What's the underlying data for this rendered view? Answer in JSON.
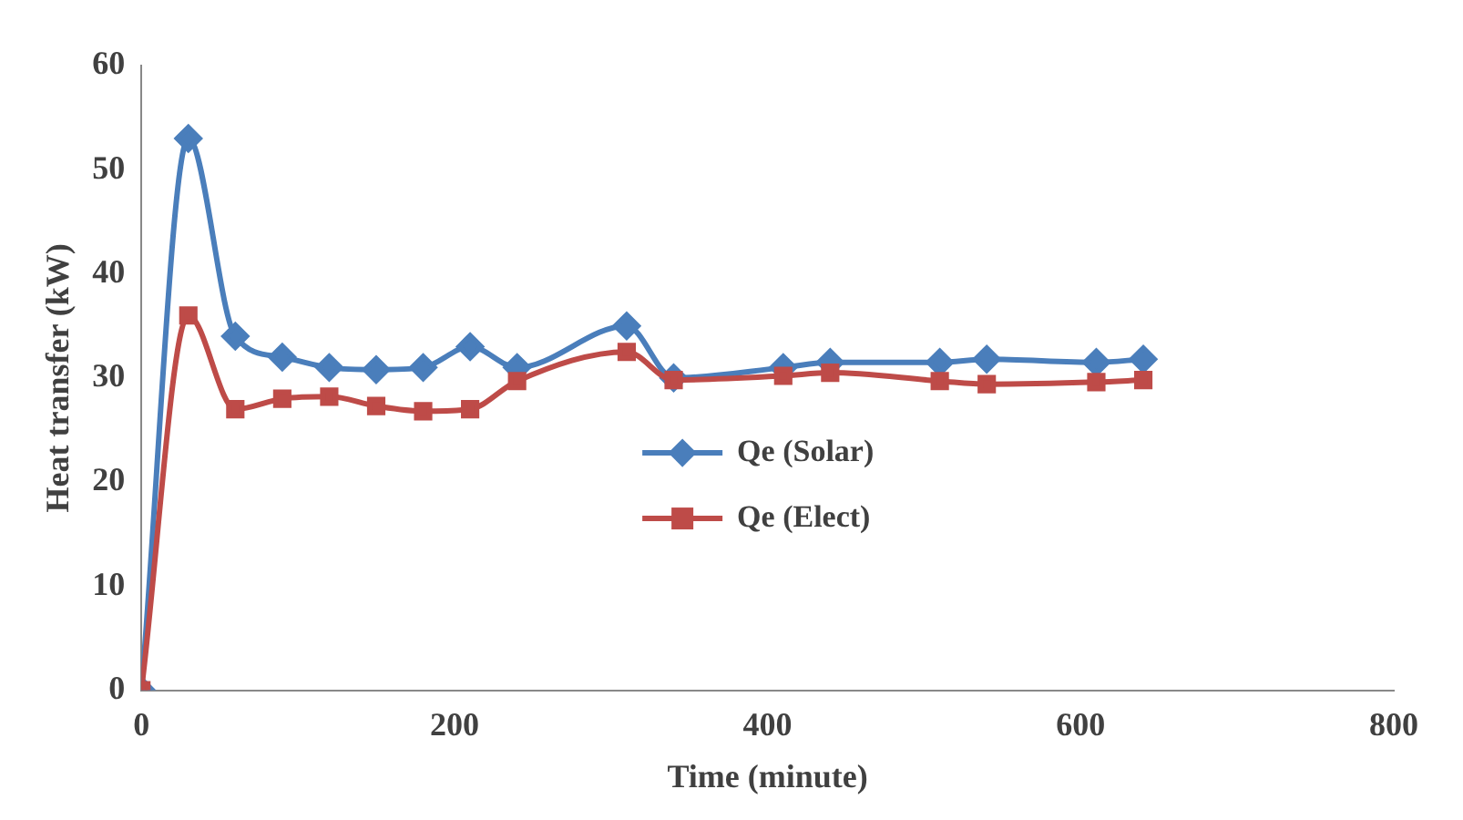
{
  "chart_data": {
    "type": "line",
    "xlabel": "Time (minute)",
    "ylabel": "Heat transfer (kW)",
    "xlim": [
      0,
      800
    ],
    "xticks": [
      0,
      200,
      400,
      600,
      800
    ],
    "ylim": [
      0,
      60
    ],
    "yticks": [
      0,
      10,
      20,
      30,
      40,
      50,
      60
    ],
    "grid": false,
    "legend": "center",
    "line_style": "solid",
    "series": [
      {
        "name": "Qe (Solar)",
        "color": "#4a7ebb",
        "marker": "diamond",
        "x": [
          0,
          30,
          60,
          90,
          120,
          150,
          180,
          210,
          240,
          310,
          340,
          410,
          440,
          510,
          540,
          610,
          640
        ],
        "values": [
          0,
          53,
          34,
          32,
          31,
          30.8,
          31,
          33,
          31,
          35,
          30,
          31,
          31.5,
          31.5,
          31.8,
          31.5,
          31.8
        ]
      },
      {
        "name": "Qe (Elect)",
        "color": "#be4b48",
        "marker": "square",
        "x": [
          0,
          30,
          60,
          90,
          120,
          150,
          180,
          210,
          240,
          310,
          340,
          410,
          440,
          510,
          540,
          610,
          640
        ],
        "values": [
          0,
          36,
          27,
          28,
          28.2,
          27.3,
          26.8,
          27,
          29.7,
          32.5,
          29.8,
          30.2,
          30.5,
          29.7,
          29.4,
          29.6,
          29.8
        ]
      }
    ]
  }
}
